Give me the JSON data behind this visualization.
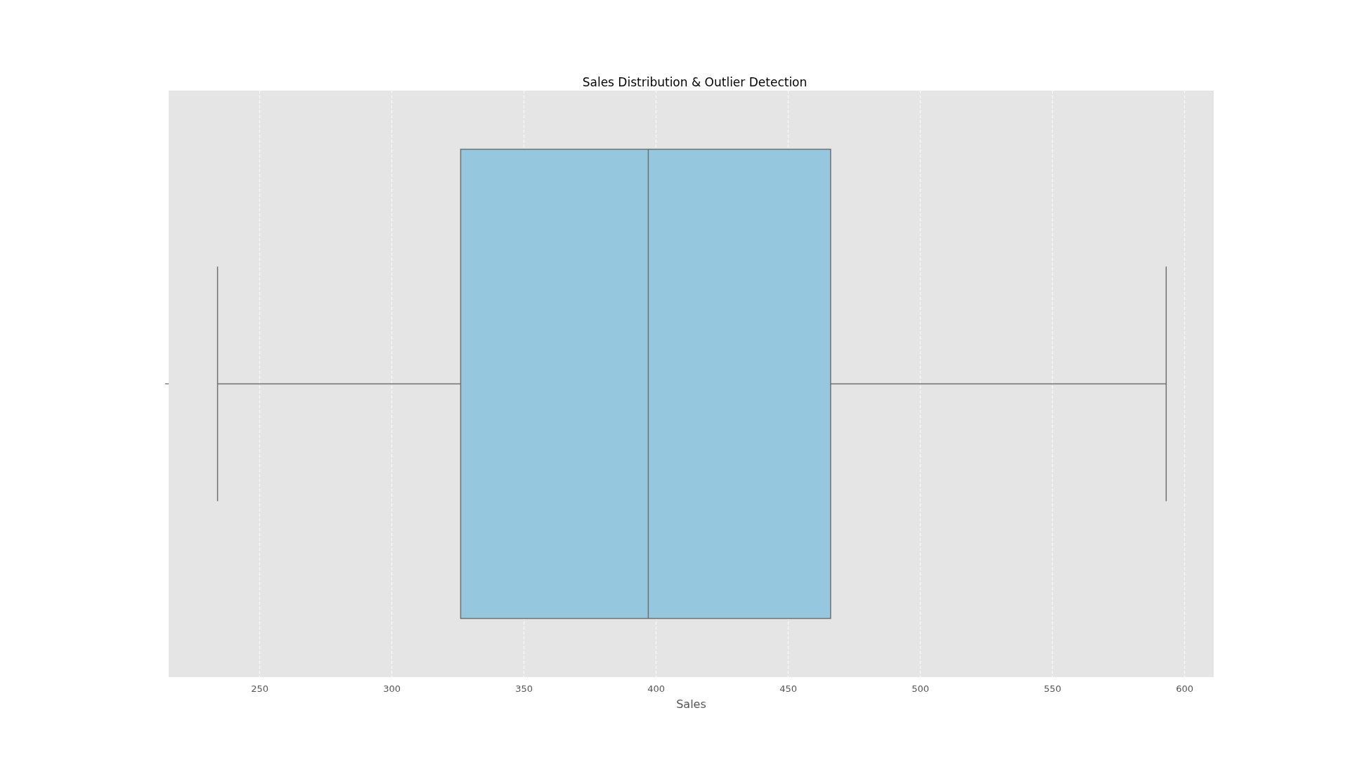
{
  "chart_data": {
    "type": "box",
    "title": "Sales Distribution & Outlier Detection",
    "xlabel": "Sales",
    "categories": [
      null
    ],
    "orientation": "horizontal",
    "color": "#95c8de",
    "boxes": [
      {
        "low": 234,
        "q1": 326,
        "median": 397,
        "q3": 466,
        "high": 593
      }
    ],
    "xlim": [
      215.5,
      611
    ],
    "xticks": [
      250,
      300,
      350,
      400,
      450,
      500,
      550,
      600
    ],
    "grid": "x",
    "tick_labels": "x"
  }
}
